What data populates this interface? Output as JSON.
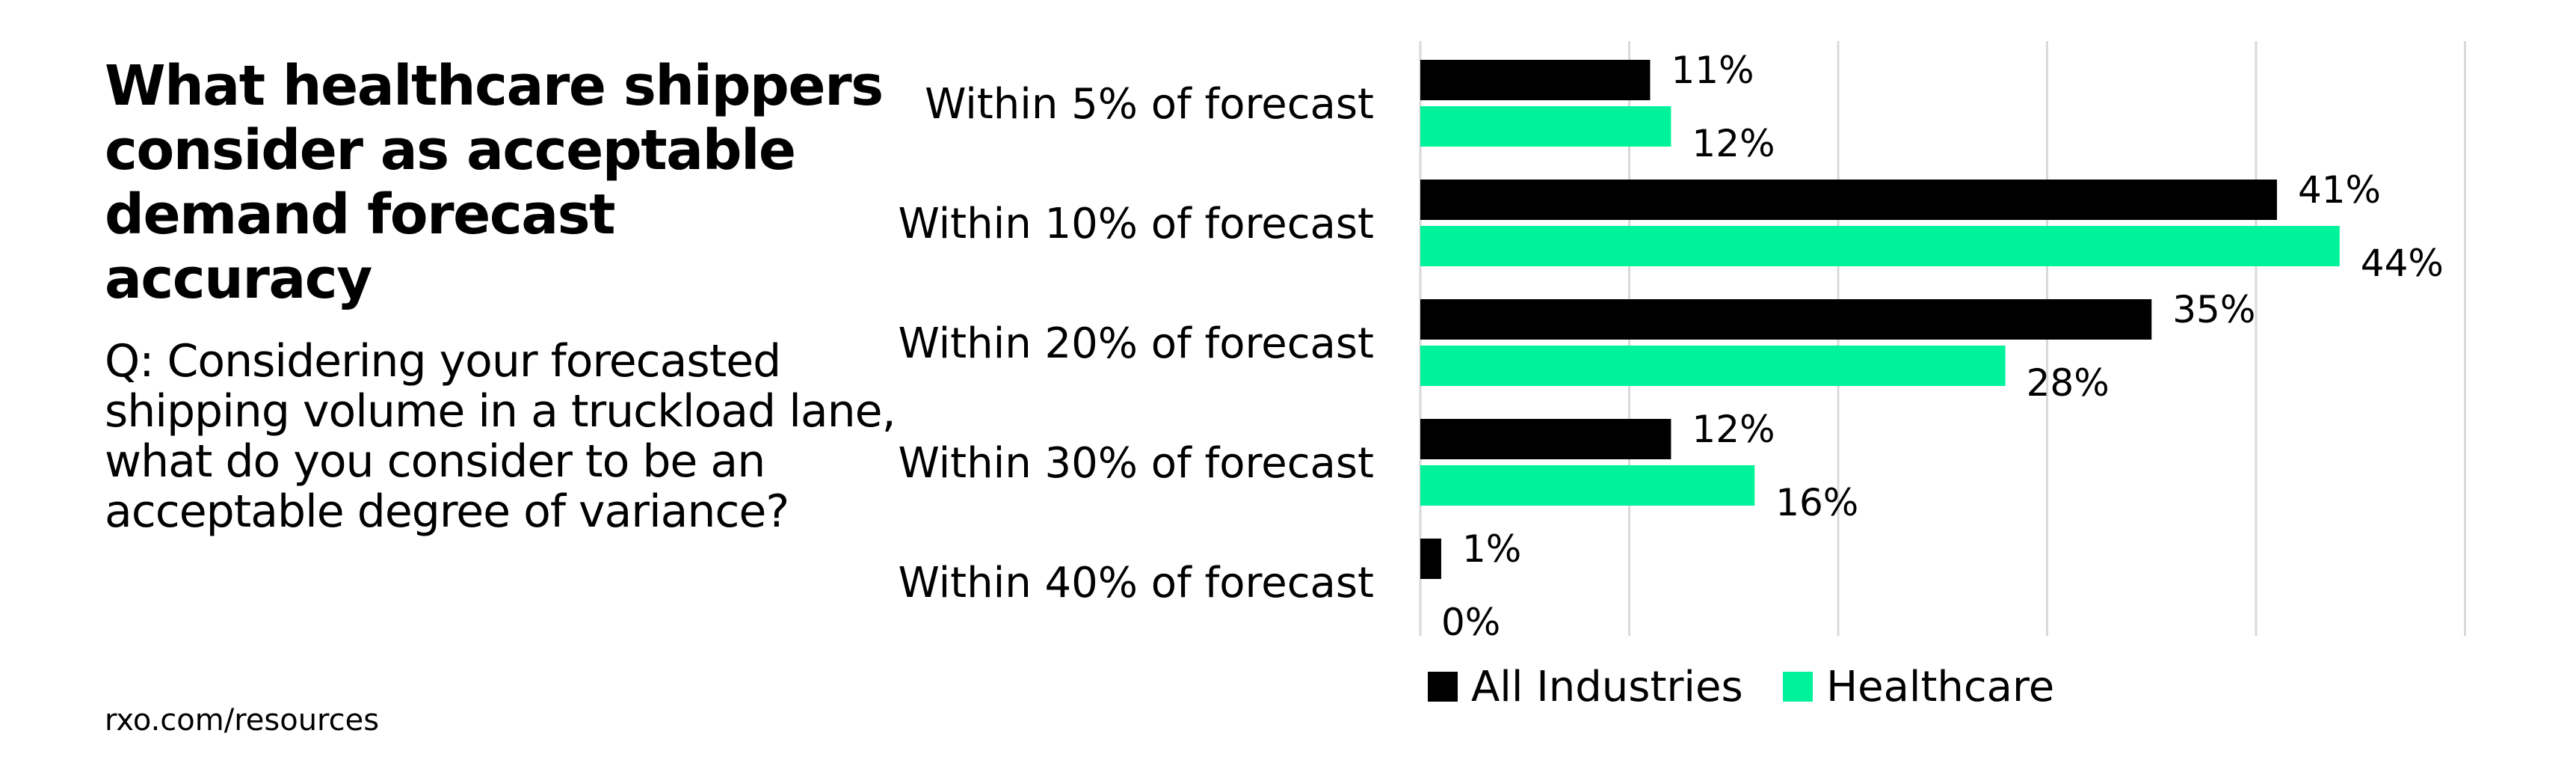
{
  "heading": {
    "title": "What healthcare shippers consider as acceptable demand forecast accuracy",
    "question": "Q: Considering your forecasted shipping volume in a truckload lane, what do you consider to be an acceptable degree of variance?",
    "source": "rxo.com/resources"
  },
  "chart_data": {
    "type": "bar",
    "orientation": "horizontal",
    "categories": [
      "Within 5% of forecast",
      "Within 10% of forecast",
      "Within 20% of forecast",
      "Within 30% of forecast",
      "Within 40% of forecast"
    ],
    "series": [
      {
        "name": "All Industries",
        "values": [
          11,
          41,
          35,
          12,
          1
        ],
        "labels": [
          "11%",
          "41%",
          "35%",
          "12%",
          "1%"
        ],
        "color": "#000000"
      },
      {
        "name": "Healthcare",
        "values": [
          12,
          44,
          28,
          16,
          0
        ],
        "labels": [
          "12%",
          "44%",
          "28%",
          "16%",
          "0%"
        ],
        "color": "#00f29a"
      }
    ],
    "xlim": [
      0,
      50
    ],
    "grid": true,
    "gridline_color": "#d9d9d9",
    "legend_position": "bottom",
    "title": "",
    "xlabel": "",
    "ylabel": ""
  }
}
